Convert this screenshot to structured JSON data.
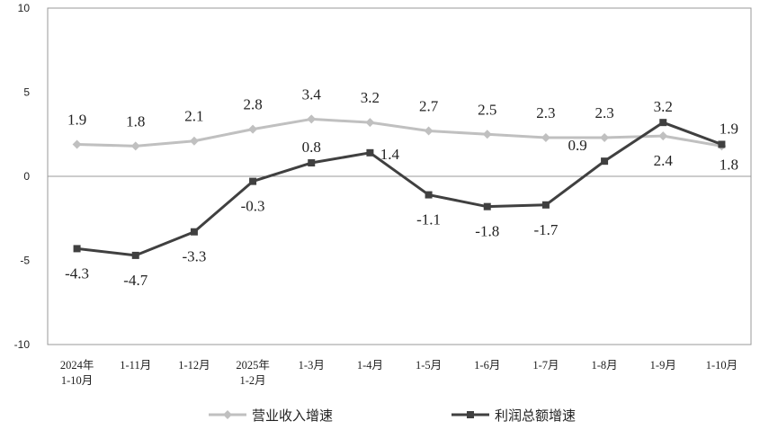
{
  "chart_data": {
    "type": "line",
    "categories": [
      [
        "2024年",
        "1-10月"
      ],
      [
        "1-11月"
      ],
      [
        "1-12月"
      ],
      [
        "2025年",
        "1-2月"
      ],
      [
        "1-3月"
      ],
      [
        "1-4月"
      ],
      [
        "1-5月"
      ],
      [
        "1-6月"
      ],
      [
        "1-7月"
      ],
      [
        "1-8月"
      ],
      [
        "1-9月"
      ],
      [
        "1-10月"
      ]
    ],
    "yticks": [
      "10",
      "5",
      "0",
      "-5",
      "-10"
    ],
    "ylim": [
      -10,
      10
    ],
    "grid": false,
    "legend_position": "bottom",
    "series": [
      {
        "name": "营业收入增速",
        "color": "#c0c0c0",
        "marker": "diamond",
        "values": [
          1.9,
          1.8,
          2.1,
          2.8,
          3.4,
          3.2,
          2.7,
          2.5,
          2.3,
          2.3,
          2.4,
          1.8
        ],
        "labels": [
          "1.9",
          "1.8",
          "2.1",
          "2.8",
          "3.4",
          "3.2",
          "2.7",
          "2.5",
          "2.3",
          "2.3",
          "2.4",
          "1.8"
        ]
      },
      {
        "name": "利润总额增速",
        "color": "#404040",
        "marker": "square",
        "values": [
          -4.3,
          -4.7,
          -3.3,
          -0.3,
          0.8,
          1.4,
          -1.1,
          -1.8,
          -1.7,
          0.9,
          3.2,
          1.9
        ],
        "labels": [
          "-4.3",
          "-4.7",
          "-3.3",
          "-0.3",
          "0.8",
          "1.4",
          "-1.1",
          "-1.8",
          "-1.7",
          "0.9",
          "3.2",
          "1.9"
        ]
      }
    ]
  }
}
